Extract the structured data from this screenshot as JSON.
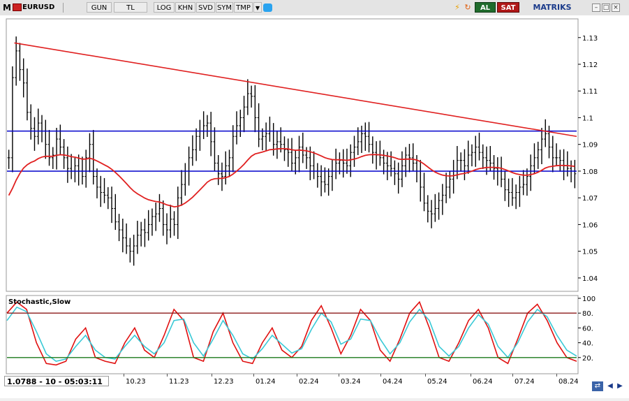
{
  "toolbar": {
    "app_icon": "M",
    "symbol": "EURUSD",
    "buttons": [
      "GUN",
      "TL",
      "LOG",
      "KHN",
      "SVD",
      "SYM",
      "TMP"
    ],
    "al": "AL",
    "sat": "SAT",
    "brand": "MATRIKS",
    "colors": {
      "al_bg": "#1f6b2c",
      "sat_bg": "#b01818",
      "brand": "#1a3a8a"
    }
  },
  "price_axis": {
    "labels": [
      "1.13",
      "1.12",
      "1.11",
      "1.1",
      "1.09",
      "1.08",
      "1.07",
      "1.06",
      "1.05",
      "1.04"
    ]
  },
  "indicator": {
    "title": "Stochastic,Slow",
    "axis_labels": [
      "100",
      "80.",
      "60.",
      "40.",
      "20."
    ]
  },
  "x_axis": {
    "labels": [
      "10.23",
      "11.23",
      "12.23",
      "01.24",
      "02.24",
      "03.24",
      "04.24",
      "05.24",
      "06.24",
      "07.24",
      "08.24"
    ]
  },
  "status": {
    "text": "1.0788 - 10 - 05:03:11"
  },
  "chart_data": [
    {
      "type": "bar",
      "title": "EURUSD",
      "xlabel": "",
      "ylabel": "",
      "ylim": [
        1.035,
        1.137
      ],
      "series": [
        {
          "kind": "ohlc_bars",
          "color": "#000000",
          "values_close": [
            1.085,
            1.115,
            1.125,
            1.118,
            1.113,
            1.102,
            1.096,
            1.093,
            1.098,
            1.095,
            1.09,
            1.085,
            1.086,
            1.092,
            1.089,
            1.085,
            1.081,
            1.08,
            1.082,
            1.08,
            1.078,
            1.085,
            1.09,
            1.078,
            1.074,
            1.072,
            1.071,
            1.07,
            1.066,
            1.061,
            1.058,
            1.055,
            1.052,
            1.05,
            1.052,
            1.056,
            1.058,
            1.057,
            1.06,
            1.063,
            1.064,
            1.066,
            1.06,
            1.058,
            1.062,
            1.06,
            1.07,
            1.075,
            1.08,
            1.085,
            1.088,
            1.093,
            1.095,
            1.097,
            1.098,
            1.091,
            1.083,
            1.079,
            1.078,
            1.082,
            1.085,
            1.093,
            1.097,
            1.1,
            1.104,
            1.109,
            1.108,
            1.1,
            1.092,
            1.093,
            1.094,
            1.095,
            1.09,
            1.091,
            1.09,
            1.088,
            1.087,
            1.083,
            1.085,
            1.089,
            1.086,
            1.085,
            1.082,
            1.08,
            1.078,
            1.076,
            1.075,
            1.078,
            1.08,
            1.083,
            1.084,
            1.083,
            1.082,
            1.087,
            1.089,
            1.091,
            1.094,
            1.093,
            1.09,
            1.087,
            1.086,
            1.085,
            1.083,
            1.082,
            1.081,
            1.079,
            1.077,
            1.082,
            1.086,
            1.085,
            1.083,
            1.08,
            1.074,
            1.068,
            1.065,
            1.064,
            1.066,
            1.069,
            1.071,
            1.074,
            1.077,
            1.08,
            1.084,
            1.084,
            1.082,
            1.086,
            1.087,
            1.089,
            1.087,
            1.085,
            1.084,
            1.083,
            1.081,
            1.08,
            1.077,
            1.073,
            1.072,
            1.07,
            1.072,
            1.074,
            1.075,
            1.078,
            1.082,
            1.085,
            1.088,
            1.092,
            1.094,
            1.089,
            1.085,
            1.085,
            1.084,
            1.082,
            1.081,
            1.08,
            1.079
          ]
        },
        {
          "name": "",
          "kind": "moving_average",
          "color": "#e02020"
        },
        {
          "name": "",
          "kind": "trendline",
          "color": "#e02020",
          "from": 1.128,
          "to": 1.093
        },
        {
          "name": "",
          "kind": "horizontal_line",
          "color": "#0000cc",
          "value": 1.095
        },
        {
          "name": "",
          "kind": "horizontal_line",
          "color": "#0000cc",
          "value": 1.08
        }
      ]
    },
    {
      "type": "line",
      "title": "Stochastic,Slow",
      "ylim": [
        0,
        100
      ],
      "levels": [
        80,
        20
      ],
      "level_colors": [
        "#8b1a1a",
        "#1a7a1a"
      ],
      "series": [
        {
          "name": "",
          "color": "#e01010",
          "values": [
            80,
            95,
            85,
            40,
            12,
            10,
            15,
            45,
            60,
            20,
            15,
            12,
            40,
            60,
            30,
            20,
            50,
            85,
            70,
            20,
            15,
            55,
            80,
            40,
            15,
            12,
            40,
            60,
            30,
            20,
            35,
            70,
            90,
            60,
            25,
            50,
            85,
            70,
            30,
            15,
            45,
            80,
            95,
            60,
            20,
            15,
            40,
            70,
            85,
            60,
            20,
            12,
            45,
            80,
            92,
            70,
            40,
            20,
            15
          ]
        },
        {
          "name": "",
          "color": "#39c9d6",
          "values": [
            70,
            88,
            82,
            55,
            25,
            15,
            18,
            35,
            50,
            30,
            20,
            18,
            35,
            50,
            35,
            25,
            40,
            70,
            72,
            40,
            22,
            45,
            70,
            50,
            25,
            18,
            32,
            50,
            38,
            26,
            32,
            58,
            80,
            68,
            38,
            45,
            72,
            70,
            45,
            25,
            40,
            68,
            85,
            70,
            35,
            22,
            35,
            60,
            78,
            65,
            35,
            20,
            40,
            68,
            85,
            75,
            50,
            30,
            22
          ]
        }
      ]
    }
  ]
}
